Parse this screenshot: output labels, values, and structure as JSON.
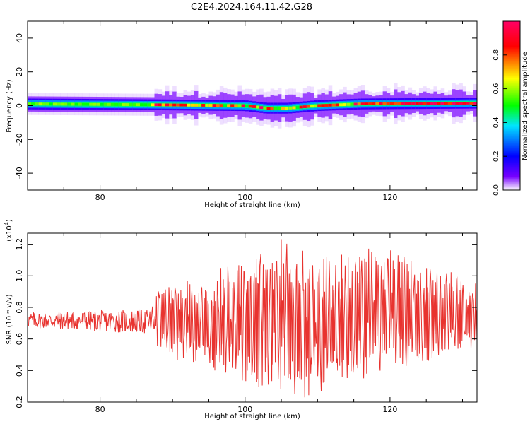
{
  "chart_data": [
    {
      "id": "spectrogram",
      "type": "heatmap",
      "title": "C2E4.2024.164.11.42.G28",
      "xlabel": "Height of straight line (km)",
      "ylabel": "Frequency (Hz)",
      "xlim": [
        70,
        132
      ],
      "ylim": [
        -50,
        50
      ],
      "xticks": [
        80,
        100,
        120
      ],
      "yticks": [
        -40,
        -20,
        0,
        20,
        40
      ],
      "colorbar": {
        "label": "Normalized spectral amplitude",
        "range": [
          0,
          1
        ],
        "ticks": [
          0.0,
          0.2,
          0.4,
          0.6,
          0.8
        ],
        "colors": [
          "#ffffff",
          "#7700ff",
          "#0000ff",
          "#00e5ff",
          "#00ff00",
          "#ffff00",
          "#ff0000",
          "#ff0066"
        ]
      },
      "band_center": [
        {
          "x": 70,
          "y": 1
        },
        {
          "x": 88,
          "y": 0.5
        },
        {
          "x": 100,
          "y": 0
        },
        {
          "x": 103,
          "y": -1.5
        },
        {
          "x": 106,
          "y": -1.5
        },
        {
          "x": 110,
          "y": 0
        },
        {
          "x": 116,
          "y": 1
        },
        {
          "x": 132,
          "y": 1.5
        }
      ]
    },
    {
      "id": "snr",
      "type": "line",
      "xlabel": "Height of straight line (km)",
      "ylabel": "SNR (10 * v/v)",
      "y_multiplier": "(x10^4)",
      "y_multiplier_base": "(x10",
      "y_multiplier_exp": "4",
      "y_multiplier_close": ")",
      "xlim": [
        70,
        132
      ],
      "ylim": [
        0.2,
        1.27
      ],
      "xticks": [
        80,
        100,
        120
      ],
      "yticks": [
        0.2,
        0.4,
        0.6,
        0.8,
        1.0,
        1.2
      ],
      "series_color": "#e8332f",
      "envelope": [
        {
          "x": 70,
          "low": 0.67,
          "high": 0.77
        },
        {
          "x": 87,
          "low": 0.63,
          "high": 0.79
        },
        {
          "x": 88,
          "low": 0.5,
          "high": 0.98
        },
        {
          "x": 95,
          "low": 0.4,
          "high": 1.0
        },
        {
          "x": 100,
          "low": 0.28,
          "high": 1.17
        },
        {
          "x": 104,
          "low": 0.26,
          "high": 1.27
        },
        {
          "x": 110,
          "low": 0.2,
          "high": 1.15
        },
        {
          "x": 114,
          "low": 0.28,
          "high": 1.18
        },
        {
          "x": 120,
          "low": 0.38,
          "high": 1.18
        },
        {
          "x": 126,
          "low": 0.45,
          "high": 1.07
        },
        {
          "x": 132,
          "low": 0.55,
          "high": 0.97
        }
      ]
    }
  ]
}
